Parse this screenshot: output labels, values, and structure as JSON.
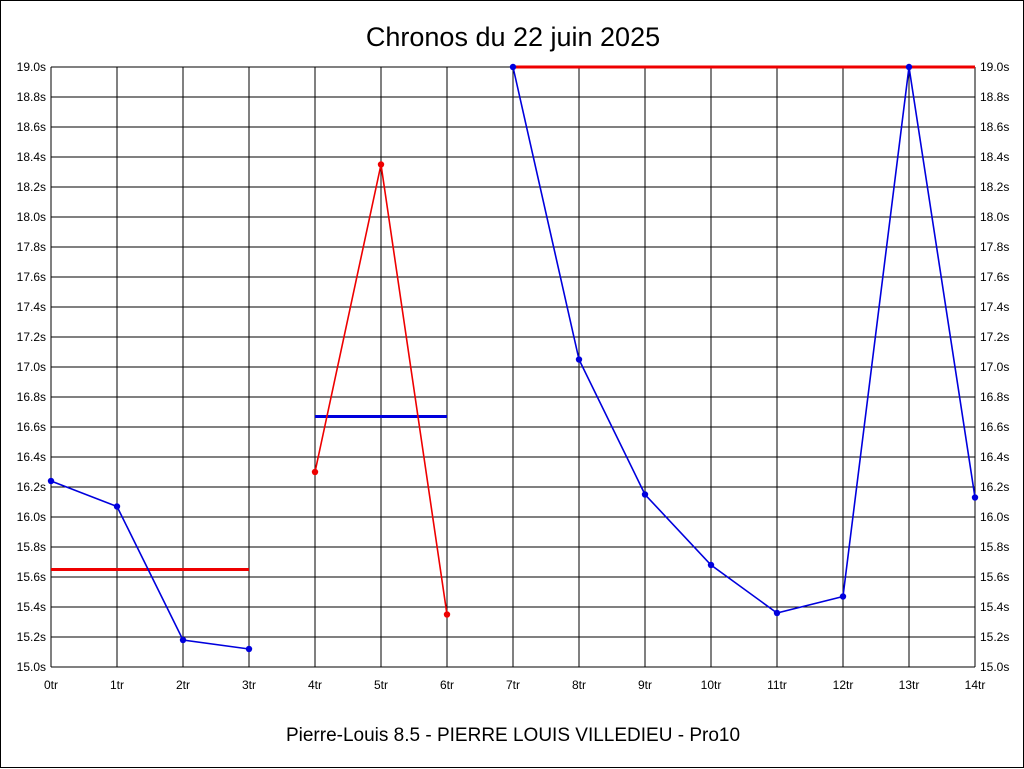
{
  "chart_data": {
    "type": "line",
    "title": "Chronos du 22 juin 2025",
    "subtitle": "Pierre-Louis 8.5 - PIERRE LOUIS VILLEDIEU - Pro10",
    "categories": [
      "0tr",
      "1tr",
      "2tr",
      "3tr",
      "4tr",
      "5tr",
      "6tr",
      "7tr",
      "8tr",
      "9tr",
      "10tr",
      "11tr",
      "12tr",
      "13tr",
      "14tr"
    ],
    "y_ticks": [
      "15.0s",
      "15.2s",
      "15.4s",
      "15.6s",
      "15.8s",
      "16.0s",
      "16.2s",
      "16.4s",
      "16.6s",
      "16.8s",
      "17.0s",
      "17.2s",
      "17.4s",
      "17.6s",
      "17.8s",
      "18.0s",
      "18.2s",
      "18.4s",
      "18.6s",
      "18.8s",
      "19.0s"
    ],
    "ylim": [
      15.0,
      19.0
    ],
    "grid": true,
    "colors": {
      "blue": "#0000dd",
      "red": "#ee0000"
    },
    "series": [
      {
        "color": "blue",
        "points": [
          [
            0,
            16.24
          ],
          [
            1,
            16.07
          ],
          [
            2,
            15.18
          ],
          [
            3,
            15.12
          ]
        ]
      },
      {
        "color": "red",
        "points": [
          [
            4,
            16.3
          ],
          [
            5,
            18.35
          ],
          [
            6,
            15.35
          ]
        ]
      },
      {
        "color": "blue",
        "points": [
          [
            7,
            19.0
          ],
          [
            8,
            17.05
          ],
          [
            9,
            16.15
          ],
          [
            10,
            15.68
          ],
          [
            11,
            15.36
          ],
          [
            12,
            15.47
          ],
          [
            13,
            19.0
          ],
          [
            14,
            16.13
          ]
        ]
      }
    ],
    "reference_lines": [
      {
        "color": "red",
        "x_start": 0,
        "x_end": 3,
        "y": 15.65
      },
      {
        "color": "blue",
        "x_start": 4,
        "x_end": 6,
        "y": 16.67
      },
      {
        "color": "red",
        "x_start": 7,
        "x_end": 14,
        "y": 19.0
      }
    ]
  }
}
